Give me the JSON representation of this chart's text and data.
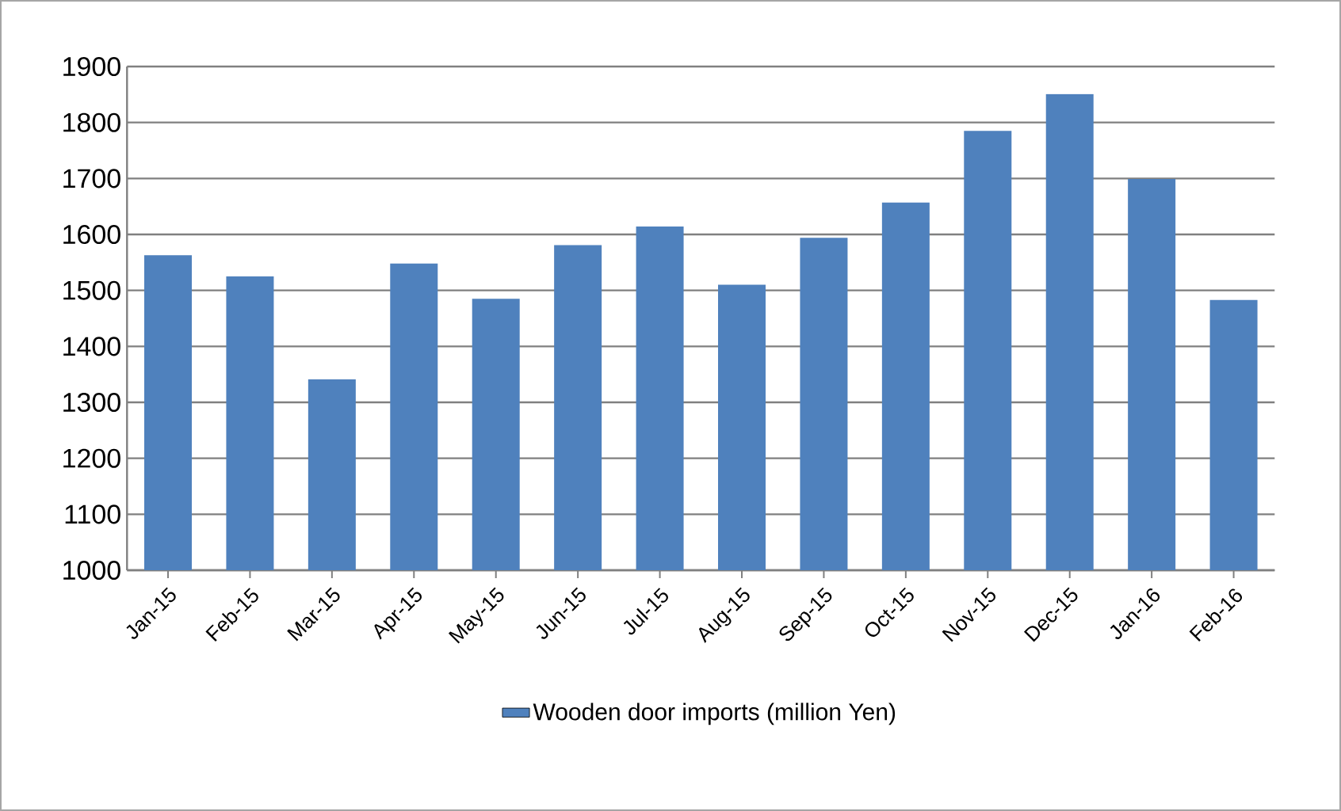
{
  "chart_data": {
    "type": "bar",
    "categories": [
      "Jan-15",
      "Feb-15",
      "Mar-15",
      "Apr-15",
      "May-15",
      "Jun-15",
      "Jul-15",
      "Aug-15",
      "Sep-15",
      "Oct-15",
      "Nov-15",
      "Dec-15",
      "Jan-16",
      "Feb-16"
    ],
    "series": [
      {
        "name": "Wooden door imports (million Yen)",
        "color": "#4f81bd",
        "values": [
          1563,
          1525,
          1341,
          1548,
          1485,
          1581,
          1614,
          1510,
          1594,
          1657,
          1785,
          1851,
          1699,
          1483
        ]
      }
    ],
    "ylim": [
      1000,
      1900
    ],
    "yticks": [
      1000,
      1100,
      1200,
      1300,
      1400,
      1500,
      1600,
      1700,
      1800,
      1900
    ],
    "grid": "y",
    "legend": "bottom"
  }
}
